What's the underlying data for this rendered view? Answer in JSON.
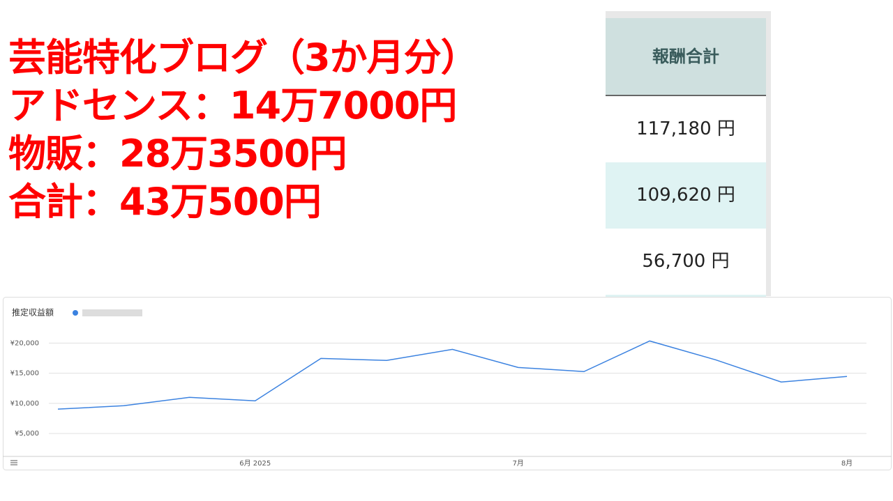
{
  "headline": [
    "芸能特化ブログ（3か月分）",
    "アドセンス：14万7000円",
    "物販：28万3500円",
    "合計：43万500円"
  ],
  "table": {
    "header": "報酬合計",
    "rows": [
      "117,180 円",
      "109,620 円",
      "56,700 円"
    ]
  },
  "chart_data": {
    "type": "line",
    "title": "推定収益額",
    "categories": [
      null,
      null,
      null,
      "6月 2025",
      null,
      null,
      null,
      "7月",
      null,
      null,
      null,
      null,
      "8月"
    ],
    "series": [
      {
        "color": "#3b82e0",
        "values": [
          9040,
          9610,
          11000,
          10420,
          17460,
          17120,
          18960,
          15960,
          15270,
          20350,
          17230,
          13540,
          14460
        ]
      }
    ],
    "ylim": [
      1200,
      21200
    ],
    "yticks": [
      {
        "value": 5000,
        "label": "¥5,000"
      },
      {
        "value": 10000,
        "label": "¥10,000"
      },
      {
        "value": 15000,
        "label": "¥15,000"
      },
      {
        "value": 20000,
        "label": "¥20,000"
      }
    ],
    "grid": true
  }
}
